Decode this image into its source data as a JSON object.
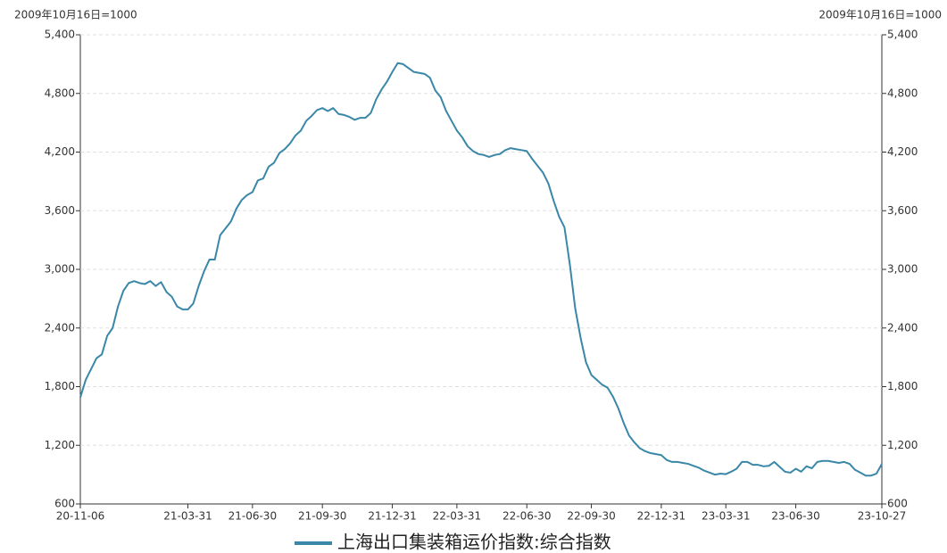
{
  "chart_data": {
    "type": "line",
    "y_label": "2009年10月16日=1000",
    "y2_label": "2009年10月16日=1000",
    "categories": [
      "20-11-06",
      null,
      null,
      null,
      null,
      null,
      null,
      null,
      null,
      null,
      null,
      null,
      null,
      null,
      null,
      null,
      null,
      null,
      null,
      null,
      "21-03-31",
      null,
      null,
      null,
      null,
      null,
      null,
      null,
      null,
      null,
      null,
      null,
      "21-06-30",
      null,
      null,
      null,
      null,
      null,
      null,
      null,
      null,
      null,
      null,
      null,
      null,
      "21-09-30",
      null,
      null,
      null,
      null,
      null,
      null,
      null,
      null,
      null,
      null,
      null,
      null,
      "21-12-31",
      null,
      null,
      null,
      null,
      null,
      null,
      null,
      null,
      null,
      null,
      null,
      "22-03-31",
      null,
      null,
      null,
      null,
      null,
      null,
      null,
      null,
      null,
      null,
      null,
      null,
      "22-06-30",
      null,
      null,
      null,
      null,
      null,
      null,
      null,
      null,
      null,
      null,
      null,
      "22-09-30",
      null,
      null,
      null,
      null,
      null,
      null,
      null,
      null,
      null,
      null,
      null,
      null,
      "22-12-31",
      null,
      null,
      null,
      null,
      null,
      null,
      null,
      null,
      null,
      null,
      null,
      "23-03-31",
      null,
      null,
      null,
      null,
      null,
      null,
      null,
      null,
      null,
      null,
      null,
      null,
      "23-06-30",
      null,
      null,
      null,
      null,
      null,
      null,
      null,
      null,
      null,
      null,
      null,
      null,
      null,
      null,
      null,
      "23-10-27"
    ],
    "series": [
      {
        "name": "上海出口集装箱运价指数:综合指数",
        "color": "#3a87a8",
        "values": [
          1690,
          1870,
          1980,
          2090,
          2130,
          2320,
          2400,
          2620,
          2780,
          2860,
          2880,
          2860,
          2850,
          2880,
          2830,
          2870,
          2770,
          2720,
          2620,
          2590,
          2590,
          2650,
          2830,
          2980,
          3100,
          3100,
          3350,
          3420,
          3490,
          3620,
          3710,
          3760,
          3790,
          3910,
          3930,
          4050,
          4090,
          4190,
          4230,
          4290,
          4370,
          4420,
          4520,
          4570,
          4630,
          4650,
          4620,
          4650,
          4590,
          4580,
          4560,
          4530,
          4550,
          4550,
          4600,
          4740,
          4840,
          4920,
          5020,
          5110,
          5100,
          5060,
          5020,
          5010,
          5000,
          4960,
          4830,
          4760,
          4620,
          4520,
          4420,
          4350,
          4260,
          4210,
          4180,
          4170,
          4150,
          4170,
          4180,
          4220,
          4240,
          4230,
          4220,
          4210,
          4130,
          4060,
          3990,
          3880,
          3700,
          3540,
          3430,
          3050,
          2600,
          2300,
          2050,
          1920,
          1870,
          1820,
          1790,
          1700,
          1580,
          1430,
          1300,
          1230,
          1170,
          1140,
          1120,
          1110,
          1100,
          1050,
          1030,
          1030,
          1020,
          1010,
          990,
          970,
          940,
          920,
          900,
          910,
          905,
          930,
          960,
          1030,
          1030,
          1000,
          1000,
          985,
          990,
          1030,
          980,
          930,
          920,
          960,
          930,
          985,
          965,
          1030,
          1040,
          1040,
          1030,
          1020,
          1030,
          1010,
          950,
          920,
          890,
          890,
          910,
          1010
        ]
      }
    ],
    "ylim": [
      600,
      5400
    ],
    "yticks": [
      600,
      {
        "value": 1200,
        "label": "1,200"
      },
      {
        "value": 1800,
        "label": "1,800"
      },
      {
        "value": 2400,
        "label": "2,400"
      },
      {
        "value": 3000,
        "label": "3,000"
      },
      {
        "value": 3600,
        "label": "3,600"
      },
      {
        "value": 4200,
        "label": "4,200"
      },
      {
        "value": 4800,
        "label": "4,800"
      },
      {
        "value": 5400,
        "label": "5,400"
      }
    ],
    "y2lim": [
      600,
      5400
    ],
    "y2ticks": [
      600,
      {
        "value": 1200,
        "label": "1,200"
      },
      {
        "value": 1800,
        "label": "1,800"
      },
      {
        "value": 2400,
        "label": "2,400"
      },
      {
        "value": 3000,
        "label": "3,000"
      },
      {
        "value": 3600,
        "label": "3,600"
      },
      {
        "value": 4200,
        "label": "4,200"
      },
      {
        "value": 4800,
        "label": "4,800"
      },
      {
        "value": 5400,
        "label": "5,400"
      }
    ],
    "grid": true
  }
}
